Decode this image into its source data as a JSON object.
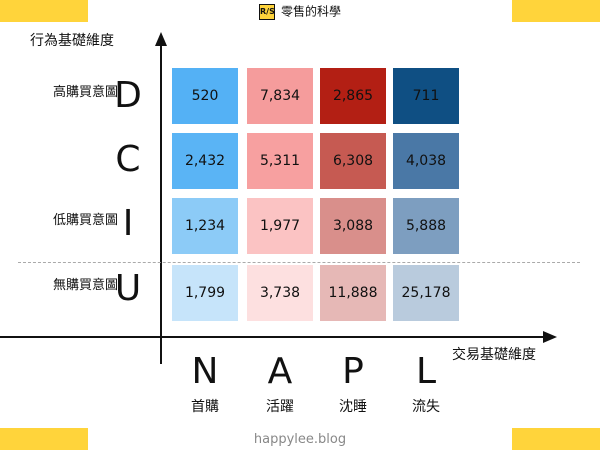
{
  "brand": {
    "logo": "R/S",
    "name": "零售的科學"
  },
  "footer": "happylee.blog",
  "colors": {
    "accent": "#ffd43b"
  },
  "chart_data": {
    "type": "heatmap",
    "ylabel": "行為基礎維度",
    "xlabel": "交易基礎維度",
    "y_categories": [
      {
        "letter": "D",
        "label": "高購買意圖"
      },
      {
        "letter": "C",
        "label": ""
      },
      {
        "letter": "I",
        "label": "低購買意圖"
      },
      {
        "letter": "U",
        "label": "無購買意圖"
      }
    ],
    "x_categories": [
      {
        "letter": "N",
        "label": "首購"
      },
      {
        "letter": "A",
        "label": "活躍"
      },
      {
        "letter": "P",
        "label": "沈睡"
      },
      {
        "letter": "L",
        "label": "流失"
      }
    ],
    "values": [
      [
        520,
        7834,
        2865,
        711
      ],
      [
        2432,
        5311,
        6308,
        4038
      ],
      [
        1234,
        1977,
        3088,
        5888
      ],
      [
        1799,
        3738,
        11888,
        25178
      ]
    ],
    "display_values": [
      [
        "520",
        "7,834",
        "2,865",
        "711"
      ],
      [
        "2,432",
        "5,311",
        "6,308",
        "4,038"
      ],
      [
        "1,234",
        "1,977",
        "3,088",
        "5,888"
      ],
      [
        "1,799",
        "3,738",
        "11,888",
        "25,178"
      ]
    ],
    "cell_colors": [
      [
        "#54b1f5",
        "#f59c9c",
        "#b31f14",
        "#0f4f83"
      ],
      [
        "#5ab4f5",
        "#f7a0a0",
        "#c65a52",
        "#4a78a6"
      ],
      [
        "#8ccbf7",
        "#fbc3c3",
        "#d98f8b",
        "#7d9ec0"
      ],
      [
        "#c6e4fa",
        "#fde0e0",
        "#e6b8b6",
        "#b9cbdd"
      ]
    ],
    "dashed_separator_after_row": 3
  }
}
